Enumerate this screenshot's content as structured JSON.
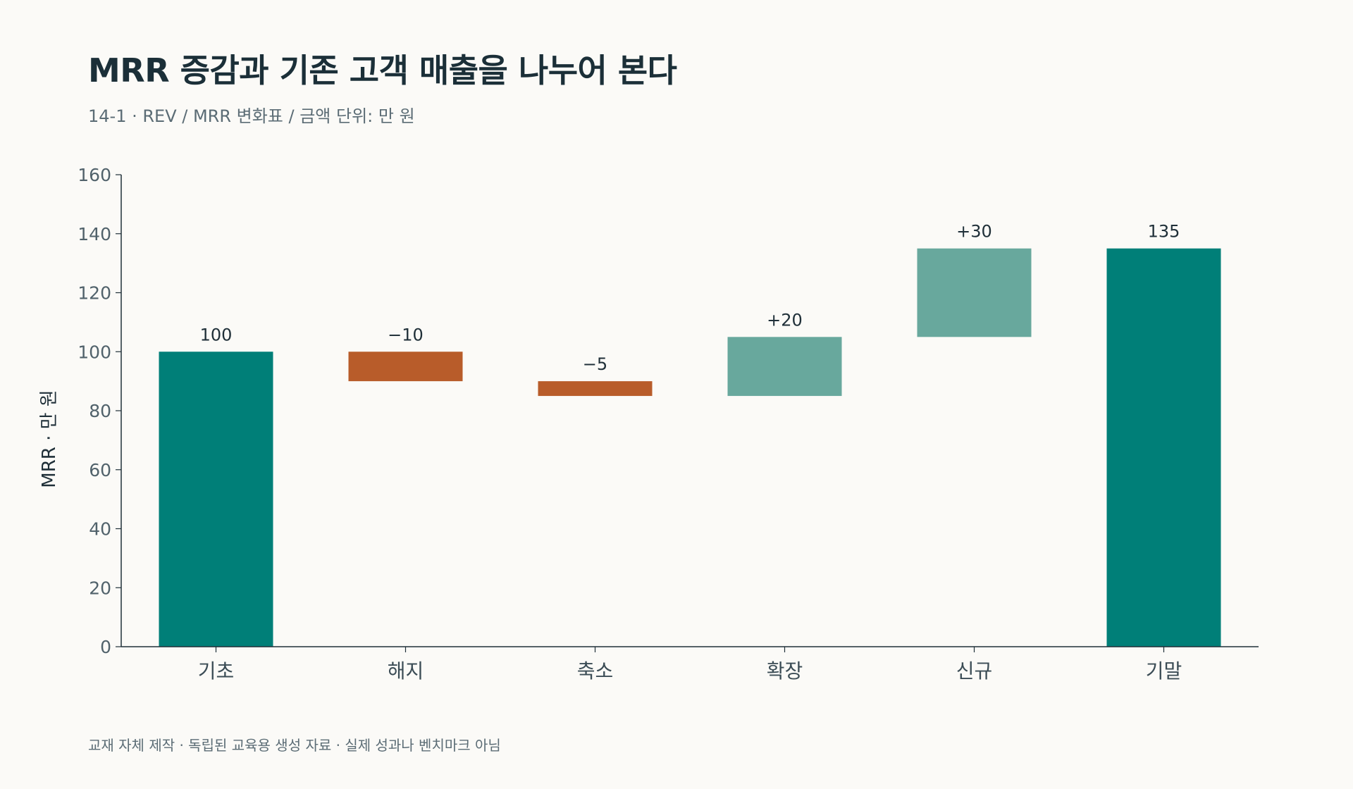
{
  "header": {
    "title": "MRR 증감과 기존 고객 매출을 나누어 본다",
    "subtitle": "14-1 · REV / MRR 변화표 / 금액 단위: 만 원"
  },
  "footer": {
    "note": "교재 자체 제작 · 독립된 교육용 생성 자료 · 실제 성과나 벤치마크 아님"
  },
  "colors": {
    "total": "#007f78",
    "decrease": "#b85c2a",
    "increase": "#68a89d",
    "axis": "#1f2f38"
  },
  "chart_data": {
    "type": "bar",
    "subtype": "waterfall",
    "ylabel": "MRR · 만 원",
    "xlabel": "",
    "ylim": [
      0,
      160
    ],
    "yticks": [
      0,
      20,
      40,
      60,
      80,
      100,
      120,
      140,
      160
    ],
    "grid": false,
    "categories": [
      "기초",
      "해지",
      "축소",
      "확장",
      "신규",
      "기말"
    ],
    "bars": [
      {
        "category": "기초",
        "kind": "total",
        "start": 0,
        "end": 100,
        "label": "100"
      },
      {
        "category": "해지",
        "kind": "decrease",
        "start": 100,
        "end": 90,
        "label": "−10"
      },
      {
        "category": "축소",
        "kind": "decrease",
        "start": 90,
        "end": 85,
        "label": "−5"
      },
      {
        "category": "확장",
        "kind": "increase",
        "start": 85,
        "end": 105,
        "label": "+20"
      },
      {
        "category": "신규",
        "kind": "increase",
        "start": 105,
        "end": 135,
        "label": "+30"
      },
      {
        "category": "기말",
        "kind": "total",
        "start": 0,
        "end": 135,
        "label": "135"
      }
    ]
  }
}
